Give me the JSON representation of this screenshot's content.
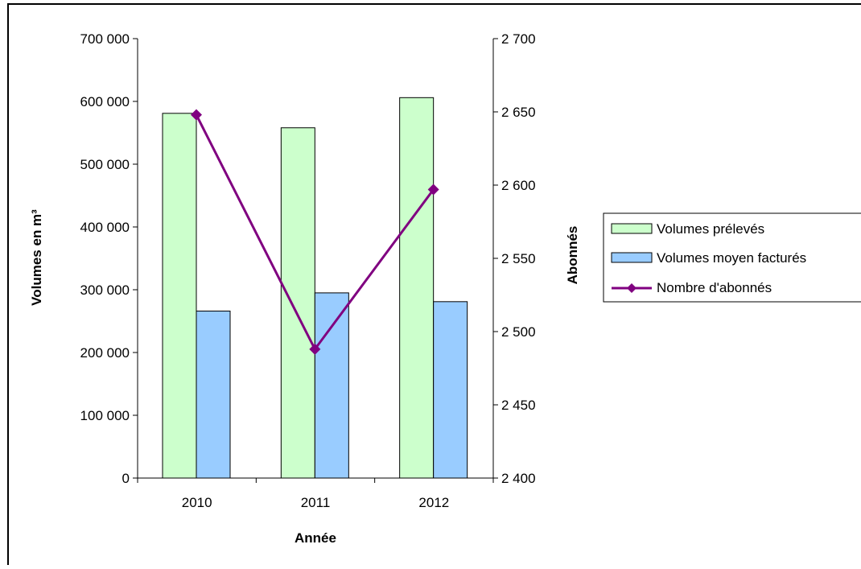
{
  "chart_data": {
    "type": "bar",
    "categories": [
      "2010",
      "2011",
      "2012"
    ],
    "xlabel": "Année",
    "ylabel": "Volumes en m³",
    "y2label": "Abonnés",
    "ylim": [
      0,
      700000
    ],
    "y2lim": [
      2400,
      2700
    ],
    "yticks": [
      "0",
      "100 000",
      "200 000",
      "300 000",
      "400 000",
      "500 000",
      "600 000",
      "700 000"
    ],
    "y2ticks": [
      "2 400",
      "2 450",
      "2 500",
      "2 550",
      "2 600",
      "2 650",
      "2 700"
    ],
    "series": [
      {
        "name": "Volumes prélevés",
        "kind": "bar",
        "axis": "left",
        "color": "#ccffcc",
        "values": [
          581000,
          558000,
          606000
        ]
      },
      {
        "name": "Volumes moyen facturés",
        "kind": "bar",
        "axis": "left",
        "color": "#99ccff",
        "values": [
          266000,
          295000,
          281000
        ]
      },
      {
        "name": "Nombre d'abonnés",
        "kind": "line",
        "axis": "right",
        "color": "#800080",
        "marker": "diamond",
        "values": [
          2648,
          2488,
          2597
        ]
      }
    ],
    "legend": "right",
    "grid": false
  }
}
